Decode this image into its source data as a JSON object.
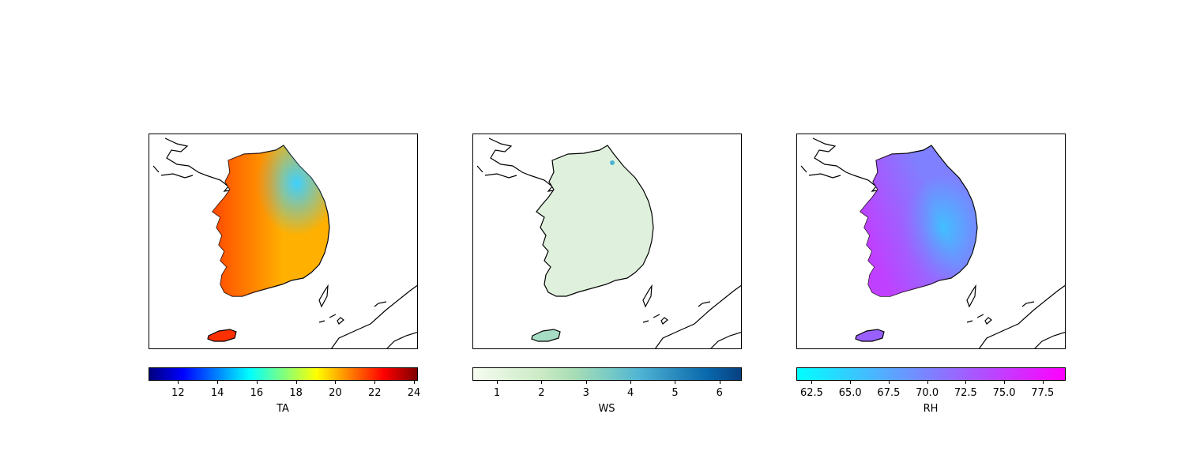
{
  "panels": [
    {
      "variable": "TA",
      "colormap": "jet",
      "gradient": [
        "#00007f",
        "#0000ff",
        "#007fff",
        "#00ffff",
        "#7fff7f",
        "#ffff00",
        "#ff7f00",
        "#ff0000",
        "#7f0000"
      ],
      "range": [
        10.5,
        24.2
      ],
      "ticks": [
        "12",
        "14",
        "16",
        "18",
        "20",
        "22",
        "24"
      ],
      "tick_values": [
        12,
        14,
        16,
        18,
        20,
        22,
        24
      ],
      "land_fill": "#ffb000",
      "accent_west": "#ff4a00",
      "accent_east": "#3fd0ff",
      "island_fill": "#ff3000"
    },
    {
      "variable": "WS",
      "colormap": "GnBu",
      "gradient": [
        "#f7fcf0",
        "#e0f3db",
        "#ccebc5",
        "#a8ddb5",
        "#7bccc4",
        "#4eb3d3",
        "#2b8cbe",
        "#0868ac",
        "#084081"
      ],
      "range": [
        0.45,
        6.5
      ],
      "ticks": [
        "1",
        "2",
        "3",
        "4",
        "5",
        "6"
      ],
      "tick_values": [
        1,
        2,
        3,
        4,
        5,
        6
      ],
      "land_fill": "#dff1dc",
      "accent_west": "#cdeac8",
      "accent_east": "#d6eed3",
      "island_fill": "#a8ddc5"
    },
    {
      "variable": "RH",
      "colormap": "cool",
      "gradient": [
        "#00ffff",
        "#ff00ff"
      ],
      "range": [
        61.5,
        79.0
      ],
      "ticks": [
        "62.5",
        "65.0",
        "67.5",
        "70.0",
        "72.5",
        "75.0",
        "77.5"
      ],
      "tick_values": [
        62.5,
        65.0,
        67.5,
        70.0,
        72.5,
        75.0,
        77.5
      ],
      "land_fill": "#7f80ff",
      "accent_west": "#c040ff",
      "accent_east": "#40c0ff",
      "island_fill": "#9a60ff"
    }
  ]
}
